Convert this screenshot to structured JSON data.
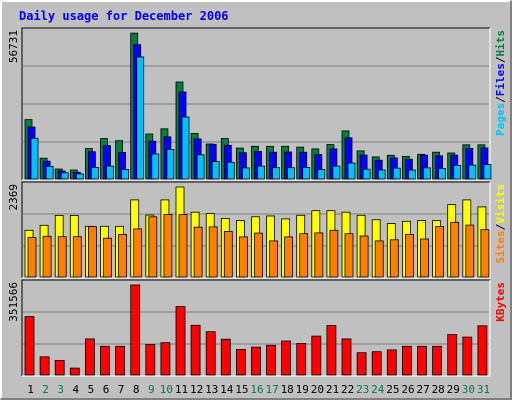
{
  "chart_data": {
    "type": "bar",
    "title": "Daily usage for December 2006",
    "days": [
      "1",
      "2",
      "3",
      "4",
      "5",
      "6",
      "7",
      "8",
      "9",
      "10",
      "11",
      "12",
      "13",
      "14",
      "15",
      "16",
      "17",
      "18",
      "19",
      "20",
      "21",
      "22",
      "23",
      "24",
      "25",
      "26",
      "27",
      "28",
      "29",
      "30",
      "31"
    ],
    "weekend_days": [
      "2",
      "3",
      "9",
      "10",
      "16",
      "17",
      "23",
      "24",
      "30",
      "31"
    ],
    "panels": [
      {
        "id": "hits-files-pages",
        "ylabel_max": "56731",
        "ymax": 56731,
        "series": [
          {
            "name": "Hits",
            "color": "#008040",
            "values": [
              23100,
              8100,
              3900,
              3500,
              11800,
              15700,
              14900,
              56700,
              17500,
              19500,
              37700,
              17700,
              13600,
              15700,
              12000,
              12700,
              12700,
              12700,
              12400,
              11700,
              13400,
              18700,
              10900,
              8600,
              9200,
              8800,
              9600,
              10400,
              10100,
              13300,
              13300
            ]
          },
          {
            "name": "Files",
            "color": "#0000ff",
            "values": [
              20200,
              6900,
              3100,
              2600,
              10600,
              13000,
              10300,
              52200,
              14700,
              16400,
              33800,
              15600,
              13500,
              13100,
              10200,
              10700,
              10400,
              10500,
              10400,
              9500,
              11700,
              16000,
              9300,
              7300,
              8200,
              7700,
              9300,
              9000,
              9300,
              11900,
              12100
            ]
          },
          {
            "name": "Pages",
            "color": "#00c0ff",
            "values": [
              15800,
              4900,
              2400,
              2000,
              4500,
              5000,
              3700,
              47400,
              9700,
              11500,
              24100,
              9400,
              6800,
              6500,
              4300,
              5000,
              4400,
              4400,
              4500,
              3700,
              5000,
              6200,
              3800,
              3500,
              4200,
              3500,
              4300,
              4100,
              5300,
              5400,
              5600
            ]
          }
        ]
      },
      {
        "id": "visits-sites",
        "ylabel_max": "2369",
        "ymax": 2369,
        "series": [
          {
            "name": "Visits",
            "color": "#ffff00",
            "values": [
              1230,
              1360,
              1620,
              1620,
              1335,
              1335,
              1335,
              2030,
              1630,
              2030,
              2369,
              1705,
              1670,
              1540,
              1485,
              1585,
              1605,
              1530,
              1625,
              1745,
              1745,
              1705,
              1625,
              1505,
              1405,
              1465,
              1485,
              1485,
              1905,
              2030,
              1845
            ]
          },
          {
            "name": "Sites",
            "color": "#ff8000",
            "values": [
              1040,
              1070,
              1060,
              1060,
              1330,
              1020,
              1120,
              1265,
              1585,
              1645,
              1645,
              1310,
              1320,
              1200,
              1055,
              1155,
              950,
              1055,
              1140,
              1160,
              1230,
              1140,
              1080,
              950,
              980,
              1120,
              1000,
              1330,
              1440,
              1365,
              1245
            ]
          }
        ]
      },
      {
        "id": "kbytes",
        "ylabel_max": "351566",
        "ymax": 351566,
        "series": [
          {
            "name": "KBytes",
            "color": "#ff0000",
            "values": [
              228000,
              71000,
              57000,
              27000,
              141000,
              112000,
              112000,
              351566,
              119000,
              126000,
              267000,
              194000,
              169000,
              140000,
              100000,
              109000,
              116000,
              133000,
              123000,
              152000,
              193000,
              141000,
              87000,
              91000,
              98000,
              112000,
              112000,
              112000,
              158000,
              148000,
              192000
            ]
          }
        ]
      }
    ],
    "right_labels": [
      {
        "panel": "hits-files-pages",
        "parts": [
          {
            "text": "Pages",
            "color": "#00c0ff"
          },
          {
            "text": "/",
            "color": "#000000"
          },
          {
            "text": "Files",
            "color": "#0000ff"
          },
          {
            "text": "/",
            "color": "#000000"
          },
          {
            "text": "Hits",
            "color": "#008040"
          }
        ]
      },
      {
        "panel": "visits-sites",
        "parts": [
          {
            "text": "Sites",
            "color": "#ff8000"
          },
          {
            "text": "/",
            "color": "#000000"
          },
          {
            "text": "Visits",
            "color": "#ffff00"
          }
        ]
      },
      {
        "panel": "kbytes",
        "parts": [
          {
            "text": "KBytes",
            "color": "#ff0000"
          }
        ]
      }
    ],
    "colors": {
      "background": "#c0c0c0",
      "panel_background": "#c0c0c0",
      "title": "#0000ff",
      "weekday": "#000000",
      "weekend": "#008040",
      "grid": "#808080"
    }
  }
}
